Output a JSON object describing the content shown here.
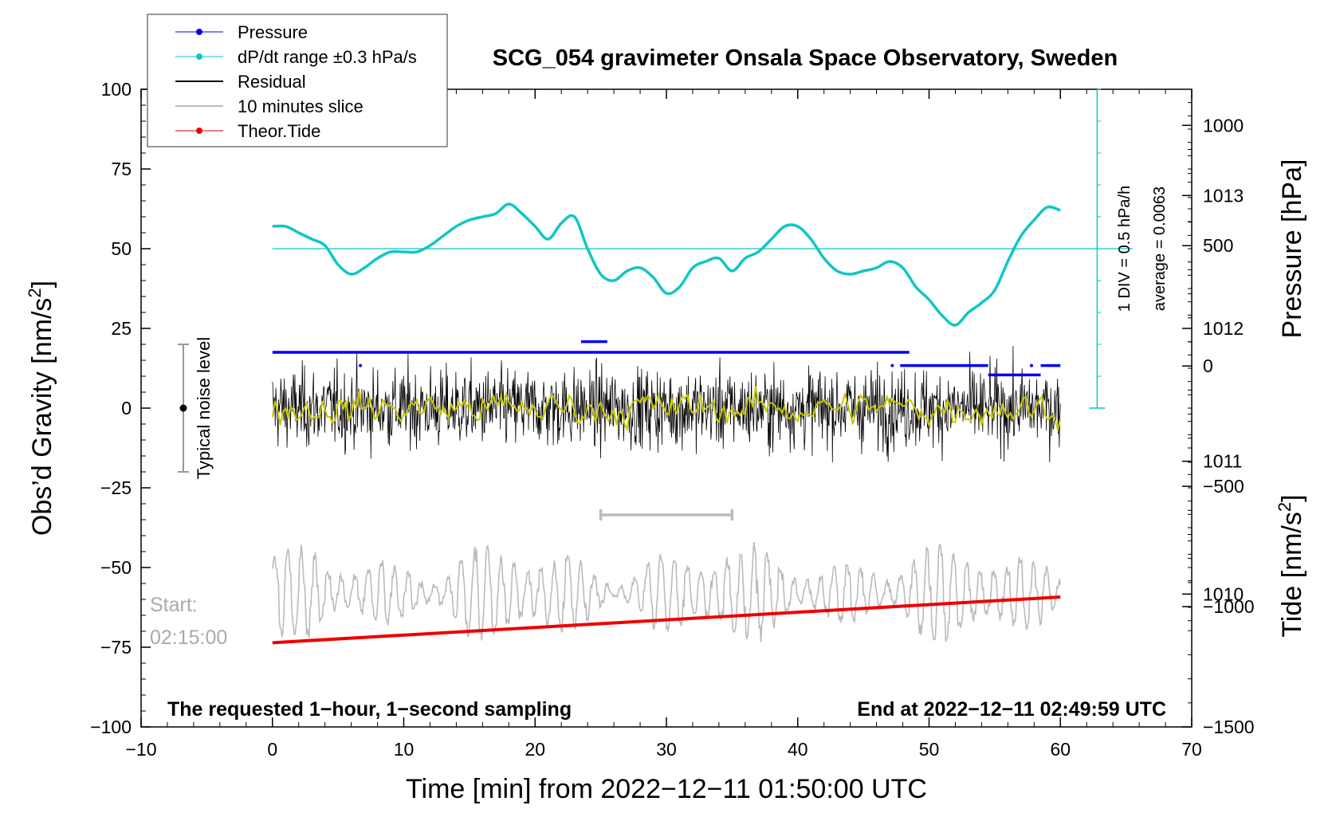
{
  "chart_data": {
    "type": "line",
    "title": "SCG_054 gravimeter Onsala Space Observatory, Sweden",
    "xlabel": "Time [min] from 2022−12−11 01:50:00 UTC",
    "ylabel_left": "Obs’d Gravity [nm/s",
    "ylabel_left_sup": "2",
    "ylabel_left_close": "]",
    "ylabel_right_pressure": "Pressure [hPa]",
    "ylabel_right_tide": "Tide [nm/s",
    "ylabel_right_tide_sup": "2",
    "ylabel_right_tide_close": "]",
    "xlim": [
      -10,
      70
    ],
    "ylim": [
      -100,
      100
    ],
    "x_ticks": [
      -10,
      0,
      10,
      20,
      30,
      40,
      50,
      60,
      70
    ],
    "x_tick_labels": [
      "−10",
      "0",
      "10",
      "20",
      "30",
      "40",
      "50",
      "60",
      "70"
    ],
    "y_ticks": [
      -100,
      -75,
      -50,
      -25,
      0,
      25,
      50,
      75,
      100
    ],
    "y_tick_labels": [
      "−100",
      "−75",
      "−50",
      "−25",
      "0",
      "25",
      "50",
      "75",
      "100"
    ],
    "pressure_axis": {
      "range": [
        1009,
        1013.8
      ],
      "ticks": [
        1010,
        1011,
        1012,
        1013
      ],
      "tick_labels": [
        "1010",
        "1011",
        "1012",
        "1013"
      ]
    },
    "tide_axis": {
      "range": [
        -1500,
        1150
      ],
      "ticks": [
        -1500,
        -1000,
        -500,
        0,
        500,
        1000
      ],
      "tick_labels": [
        "−1500",
        "−1000",
        "−500",
        "0",
        "500",
        "1000"
      ]
    },
    "legend": {
      "position": "top-left",
      "entries": [
        {
          "label": "Pressure",
          "color": "#0000ee"
        },
        {
          "label": "dP/dt range ±0.3 hPa/s",
          "color": "#11c6c6"
        },
        {
          "label": "Residual",
          "color": "#000000"
        },
        {
          "label": "10 minutes slice",
          "color": "#bbbbbb"
        },
        {
          "label": "Theor.Tide",
          "color": "#ee0000"
        }
      ]
    },
    "series": [
      {
        "name": "Pressure",
        "axis": "pressure",
        "color": "#0000ee",
        "segments": [
          {
            "x": [
              0,
              48.5
            ],
            "y": [
              1011.82,
              1011.82
            ]
          },
          {
            "x": [
              23.5,
              25.5
            ],
            "y": [
              1011.9,
              1011.9
            ]
          },
          {
            "x": [
              47.8,
              54.5
            ],
            "y": [
              1011.72,
              1011.72
            ]
          },
          {
            "x": [
              54.5,
              58.5
            ],
            "y": [
              1011.65,
              1011.65
            ]
          },
          {
            "x": [
              58.5,
              60
            ],
            "y": [
              1011.72,
              1011.72
            ]
          }
        ]
      },
      {
        "name": "dP/dt range ±0.3 hPa/s",
        "axis": "gravity",
        "color": "#11c6c6",
        "x": [
          0,
          1,
          2,
          3,
          4,
          5,
          6,
          7,
          8,
          9,
          10,
          11,
          12,
          13,
          14,
          15,
          16,
          17,
          18,
          19,
          20,
          21,
          22,
          23,
          24,
          25,
          26,
          27,
          28,
          29,
          30,
          31,
          32,
          33,
          34,
          35,
          36,
          37,
          38,
          39,
          40,
          41,
          42,
          43,
          44,
          45,
          46,
          47,
          48,
          49,
          50,
          51,
          52,
          53,
          54,
          55,
          56,
          57,
          58,
          59,
          60
        ],
        "y": [
          57,
          57,
          55,
          53,
          51,
          45,
          42,
          44,
          47,
          49,
          49,
          49,
          51,
          54,
          57,
          59,
          60,
          61,
          64,
          61,
          57,
          53,
          58,
          60,
          50,
          42,
          40,
          43,
          44,
          41,
          36,
          38,
          44,
          46,
          47,
          43,
          47,
          49,
          53,
          57,
          57,
          53,
          47,
          43,
          42,
          43,
          44,
          46,
          44,
          38,
          34,
          29,
          26,
          30,
          33,
          37,
          46,
          54,
          59,
          63,
          62
        ]
      },
      {
        "name": "Residual",
        "axis": "gravity",
        "color": "#000000",
        "x_range": [
          0,
          60
        ],
        "typical_range": [
          -17,
          20
        ]
      },
      {
        "name": "10 minutes slice",
        "axis": "gravity",
        "color": "#bbbbbb",
        "x_range": [
          0,
          60
        ],
        "center": -58,
        "slice_bar_x": [
          25,
          35
        ]
      },
      {
        "name": "Theor.Tide",
        "axis": "tide",
        "color": "#ee0000",
        "x": [
          0,
          60
        ],
        "y": [
          -1150,
          -960
        ]
      }
    ],
    "reference_line_y": 50,
    "annotations": {
      "noise_label": "Typical noise level",
      "noise_range": [
        -20,
        20
      ],
      "start_label": "Start:",
      "start_time": "02:15:00",
      "footer_left": "The requested 1−hour, 1−second sampling",
      "footer_right": "End at 2022−12−11 02:49:59 UTC",
      "div_label": "1 DIV = 0.5 hPa/h",
      "average_label": "average = 0.0063"
    }
  }
}
